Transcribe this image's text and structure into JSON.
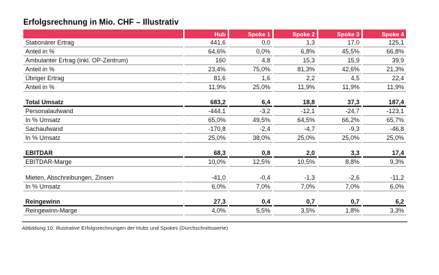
{
  "title": "Erfolgsrechnung in Mio. CHF – Illustrativ",
  "caption": "Abbildung 10: Illustrative Erfolgsrechnungen der Hubs und Spokes (Durchschnittswerte)",
  "colors": {
    "header_bg": "#e8385c",
    "header_text": "#ffffff",
    "row_line": "#9d9d9d",
    "total_line": "#2e2e2e",
    "text": "#111111",
    "rule": "#1f1f1f"
  },
  "table": {
    "columns": [
      "",
      "Hub",
      "Spoke 1",
      "Spoke 2",
      "Spoke 3",
      "Spoke 4"
    ],
    "rows": [
      {
        "label": "Stationärer Ertrag",
        "values": [
          "441,6",
          "0,0",
          "1,3",
          "17,0",
          "125,1"
        ],
        "bold": false,
        "spacer_before": false
      },
      {
        "label": "Anteil in %",
        "values": [
          "64,6%",
          "0,0%",
          "6,8%",
          "45,5%",
          "66,8%"
        ],
        "bold": false,
        "spacer_before": false
      },
      {
        "label": "Ambulanter Ertrag (inkl. OP-Zentrum)",
        "values": [
          "160",
          "4,8",
          "15,3",
          "15,9",
          "39,9"
        ],
        "bold": false,
        "spacer_before": false
      },
      {
        "label": "Anteil in %",
        "values": [
          "23,4%",
          "75,0%",
          "81,3%",
          "42,6%",
          "21,3%"
        ],
        "bold": false,
        "spacer_before": false
      },
      {
        "label": "Übriger Ertrag",
        "values": [
          "81,6",
          "1,6",
          "2,2",
          "4,5",
          "22,4"
        ],
        "bold": false,
        "spacer_before": false
      },
      {
        "label": "Anteil in %",
        "values": [
          "11,9%",
          "25,0%",
          "11,9%",
          "11,9%",
          "11,9%"
        ],
        "bold": false,
        "spacer_before": false
      },
      {
        "label": "Total Umsatz",
        "values": [
          "683,2",
          "6,4",
          "18,8",
          "37,3",
          "187,4"
        ],
        "bold": true,
        "spacer_before": true
      },
      {
        "label": "Personalaufwand",
        "values": [
          "-444,1",
          "-3,2",
          "-12,1",
          "-24,7",
          "-123,1"
        ],
        "bold": false,
        "spacer_before": false
      },
      {
        "label": "In % Umsatz",
        "values": [
          "65,0%",
          "49,5%",
          "64,5%",
          "66,2%",
          "65,7%"
        ],
        "bold": false,
        "spacer_before": false
      },
      {
        "label": "Sachaufwand",
        "values": [
          "-170,8",
          "-2,4",
          "-4,7",
          "-9,3",
          "-46,8"
        ],
        "bold": false,
        "spacer_before": false
      },
      {
        "label": "In % Umsatz",
        "values": [
          "25,0%",
          "38,0%",
          "25,0%",
          "25,0%",
          "25,0%"
        ],
        "bold": false,
        "spacer_before": false
      },
      {
        "label": "EBITDAR",
        "values": [
          "68,3",
          "0,8",
          "2,0",
          "3,3",
          "17,4"
        ],
        "bold": true,
        "spacer_before": true
      },
      {
        "label": "EBITDAR-Marge",
        "values": [
          "10,0%",
          "12,5%",
          "10,5%",
          "8,8%",
          "9,3%"
        ],
        "bold": false,
        "spacer_before": false
      },
      {
        "label": "Mieten, Abschreibungen, Zinsen",
        "values": [
          "-41,0",
          "-0,4",
          "-1,3",
          "-2,6",
          "-11,2"
        ],
        "bold": false,
        "spacer_before": true
      },
      {
        "label": "In % Umsatz",
        "values": [
          "6,0%",
          "7,0%",
          "7,0%",
          "7,0%",
          "6,0%"
        ],
        "bold": false,
        "spacer_before": false
      },
      {
        "label": "Reingewinn",
        "values": [
          "27,3",
          "0,4",
          "0,7",
          "0,7",
          "6,2"
        ],
        "bold": true,
        "spacer_before": true
      },
      {
        "label": "Reingewinn-Marge",
        "values": [
          "4,0%",
          "5,5%",
          "3,5%",
          "1,8%",
          "3,3%"
        ],
        "bold": false,
        "spacer_before": false
      }
    ]
  }
}
